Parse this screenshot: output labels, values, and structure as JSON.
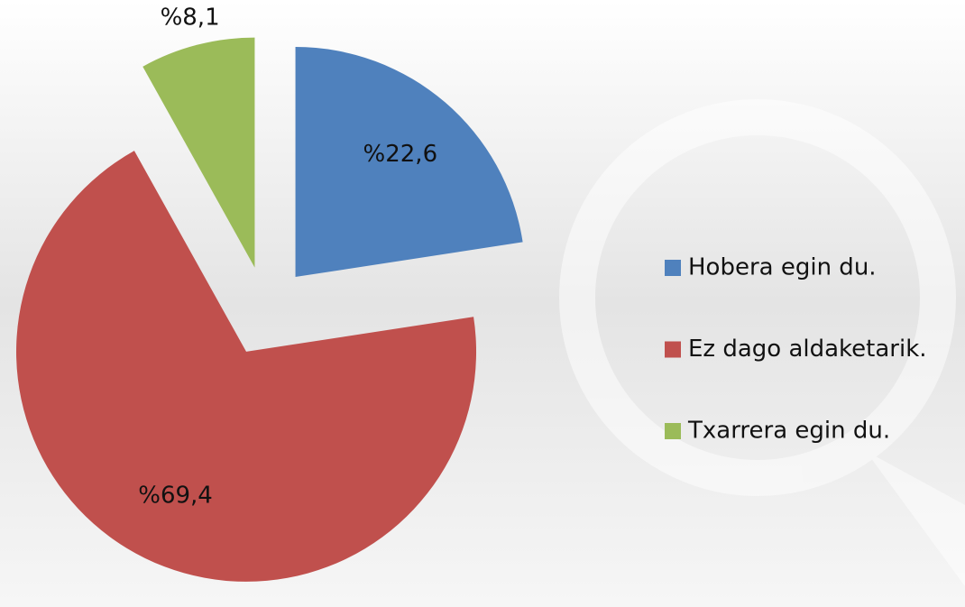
{
  "chart_data": {
    "type": "pie",
    "categories": [
      "Hobera egin du.",
      "Ez dago aldaketarik.",
      "Txarrera egin du."
    ],
    "values": [
      22.6,
      69.4,
      8.1
    ],
    "value_labels": [
      "%22,6",
      "%69,4",
      "%8,1"
    ],
    "colors": [
      "#4f81bd",
      "#c0504d",
      "#9bbb59"
    ],
    "legend": "right"
  }
}
